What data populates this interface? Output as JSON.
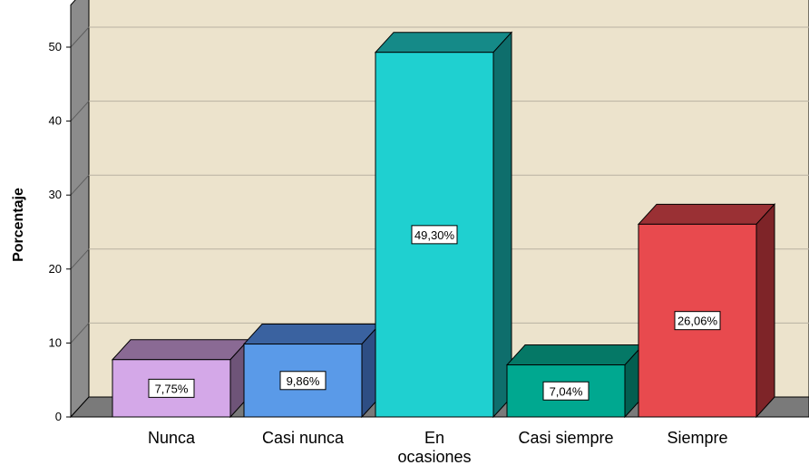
{
  "chart_data": {
    "type": "bar",
    "ylabel": "Porcentaje",
    "xlabel": "",
    "ylim": [
      0,
      50
    ],
    "yticks": [
      0,
      10,
      20,
      30,
      40,
      50
    ],
    "grid": true,
    "style": "3d",
    "categories": [
      "Nunca",
      "Casi nunca",
      "En ocasiones",
      "Casi siempre",
      "Siempre"
    ],
    "category_lines": [
      [
        "Nunca"
      ],
      [
        "Casi nunca"
      ],
      [
        "En",
        "ocasiones"
      ],
      [
        "Casi siempre"
      ],
      [
        "Siempre"
      ]
    ],
    "values": [
      7.75,
      9.86,
      49.3,
      7.04,
      26.06
    ],
    "data_labels": [
      "7,75%",
      "9,86%",
      "49,30%",
      "7,04%",
      "26,06%"
    ],
    "colors": {
      "front": [
        "#d4a8e8",
        "#5a9ae8",
        "#1fd0d0",
        "#00a890",
        "#e84a4e"
      ],
      "top": [
        "#8a6a94",
        "#3a62a0",
        "#158a88",
        "#057866",
        "#9a3034"
      ],
      "side": [
        "#6e5478",
        "#2e4e84",
        "#0e6e6c",
        "#035e50",
        "#7e2428"
      ],
      "plot_bg": "#ece3cc",
      "floor": "#7a7a7a",
      "grid": "#b8b2a2"
    }
  }
}
